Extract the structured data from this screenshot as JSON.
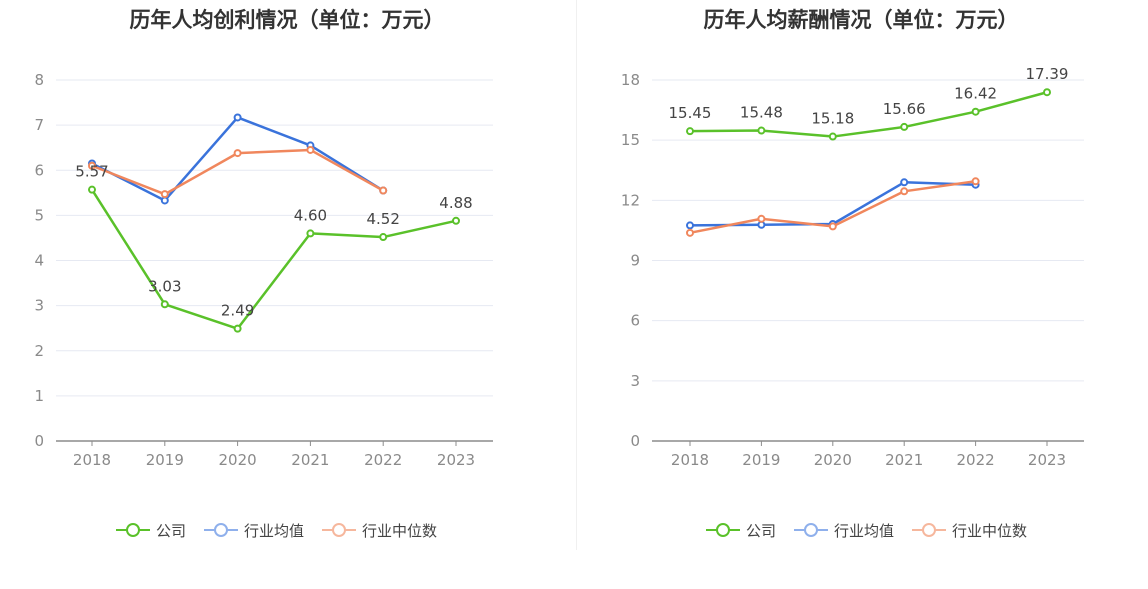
{
  "chart_data": [
    {
      "type": "line",
      "title": "历年人均创利情况（单位：万元）",
      "categories": [
        "2018",
        "2019",
        "2020",
        "2021",
        "2022",
        "2023"
      ],
      "ylim": [
        0,
        8
      ],
      "yticks": [
        "0",
        "1",
        "2",
        "3",
        "4",
        "5",
        "6",
        "7",
        "8"
      ],
      "series": [
        {
          "name": "公司",
          "color": "#5ac12a",
          "values": [
            5.57,
            3.03,
            2.49,
            4.6,
            4.52,
            4.88
          ],
          "labels": [
            "5.57",
            "3.03",
            "2.49",
            "4.60",
            "4.52",
            "4.88"
          ]
        },
        {
          "name": "行业均值",
          "color": "#3a73db",
          "values": [
            6.15,
            5.33,
            7.17,
            6.55,
            5.55,
            null
          ]
        },
        {
          "name": "行业中位数",
          "color": "#f0875d",
          "values": [
            6.1,
            5.47,
            6.38,
            6.45,
            5.55,
            null
          ]
        }
      ]
    },
    {
      "type": "line",
      "title": "历年人均薪酬情况（单位：万元）",
      "categories": [
        "2018",
        "2019",
        "2020",
        "2021",
        "2022",
        "2023"
      ],
      "ylim": [
        0,
        18
      ],
      "yticks": [
        "0",
        "3",
        "6",
        "9",
        "12",
        "15",
        "18"
      ],
      "series": [
        {
          "name": "公司",
          "color": "#5ac12a",
          "values": [
            15.45,
            15.48,
            15.18,
            15.66,
            16.42,
            17.39
          ],
          "labels": [
            "15.45",
            "15.48",
            "15.18",
            "15.66",
            "16.42",
            "17.39"
          ]
        },
        {
          "name": "行业均值",
          "color": "#3a73db",
          "values": [
            10.75,
            10.78,
            10.82,
            12.9,
            12.78,
            null
          ]
        },
        {
          "name": "行业中位数",
          "color": "#f0875d",
          "values": [
            10.38,
            11.08,
            10.7,
            12.45,
            12.95,
            null
          ]
        }
      ]
    }
  ],
  "legend": {
    "company": "公司",
    "industry_avg": "行业均值",
    "industry_median": "行业中位数",
    "colors": {
      "company": "#5ac12a",
      "industry_avg": "#8fb0ec",
      "industry_median": "#f6b79d"
    }
  }
}
